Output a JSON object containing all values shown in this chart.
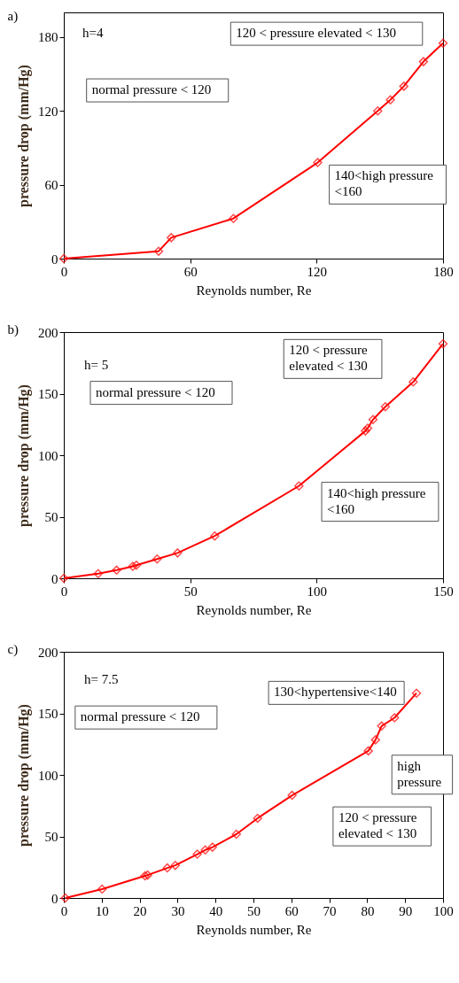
{
  "chart_data": [
    {
      "type": "line",
      "title": "a)",
      "xlabel": "Reynolds number, Re",
      "ylabel": "pressure drop (mm/Hg)",
      "x": [
        0,
        45,
        51,
        80.5,
        120.5,
        149,
        155,
        161.4,
        170.7,
        180
      ],
      "series": [
        {
          "color": "#ff0000",
          "values": [
            0,
            6,
            17,
            32.6,
            78,
            120,
            129,
            140,
            160,
            175
          ]
        }
      ],
      "xlim": [
        0,
        180
      ],
      "xticks": [
        0,
        60,
        120,
        180
      ],
      "ylim": [
        0,
        200
      ],
      "yticks": [
        0,
        60,
        120,
        180
      ],
      "marker": "diamond",
      "line_style": "solid",
      "grid": false,
      "annotations": [
        "h=4",
        "normal pressure < 120",
        "120 < pressure elevated < 130",
        "140<high pressure <160"
      ]
    },
    {
      "type": "line",
      "title": "b)",
      "xlabel": "Reynolds number, Re",
      "ylabel": "pressure drop (mm/Hg)",
      "x": [
        0,
        13.6,
        20.9,
        27.3,
        28.7,
        36.9,
        45,
        59.7,
        93,
        119.3,
        120.2,
        122.3,
        127.2,
        138.2,
        150
      ],
      "series": [
        {
          "color": "#ff0000",
          "values": [
            0,
            3.8,
            6.6,
            9.7,
            10.6,
            15.6,
            20.6,
            34.4,
            75,
            119.7,
            122,
            129,
            139.4,
            159.5,
            190.5
          ]
        }
      ],
      "xlim": [
        0,
        150
      ],
      "xticks": [
        0,
        50,
        100,
        150
      ],
      "ylim": [
        0,
        200
      ],
      "yticks": [
        0,
        50,
        100,
        150,
        200
      ],
      "marker": "diamond",
      "line_style": "solid",
      "grid": false,
      "annotations": [
        "h= 5",
        "normal pressure < 120",
        "120 < pressure elevated < 130",
        "140<high pressure <160"
      ]
    },
    {
      "type": "line",
      "title": "c)",
      "xlabel": "Reynolds number, Re",
      "ylabel": "pressure drop (mm/Hg)",
      "x": [
        0.4,
        10.1,
        21.4,
        22.1,
        27.3,
        29.4,
        35.2,
        37.3,
        39.2,
        45.5,
        51.1,
        60.2,
        80.3,
        82.2,
        83.8,
        87.2,
        93
      ],
      "series": [
        {
          "color": "#ff0000",
          "values": [
            0,
            7.2,
            18,
            18.6,
            24.4,
            26.5,
            35.6,
            39,
            41.3,
            51.8,
            64.8,
            83.4,
            119.5,
            128.5,
            139.7,
            146.4,
            166.4
          ]
        }
      ],
      "xlim": [
        0,
        100
      ],
      "xticks": [
        0,
        10,
        20,
        30,
        40,
        50,
        60,
        70,
        80,
        90,
        100
      ],
      "ylim": [
        0,
        200
      ],
      "yticks": [
        0,
        50,
        100,
        150,
        200
      ],
      "marker": "diamond",
      "line_style": "solid",
      "grid": false,
      "annotations": [
        "h= 7.5",
        "130<hypertensive<140",
        "normal pressure < 120",
        "high pressure",
        "120 < pressure elevated < 130"
      ]
    }
  ]
}
